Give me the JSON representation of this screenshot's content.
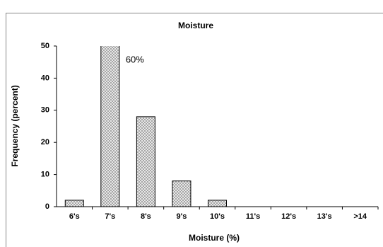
{
  "chart_data": {
    "type": "bar",
    "title": "Moisture",
    "x_label": "Moisture (%)",
    "y_label": "Frequency (percent)",
    "categories": [
      "6's",
      "7's",
      "8's",
      "9's",
      "10's",
      "11's",
      "12's",
      "13's",
      ">14"
    ],
    "values": [
      2,
      60,
      28,
      8,
      2,
      0,
      0,
      0,
      0
    ],
    "value_labels": [
      null,
      "60%",
      null,
      null,
      null,
      null,
      null,
      null,
      null
    ],
    "color": "#c8c8c8",
    "ylim": [
      0,
      50
    ],
    "yticks": [
      0,
      10,
      20,
      30,
      40,
      50
    ],
    "grid": false
  }
}
